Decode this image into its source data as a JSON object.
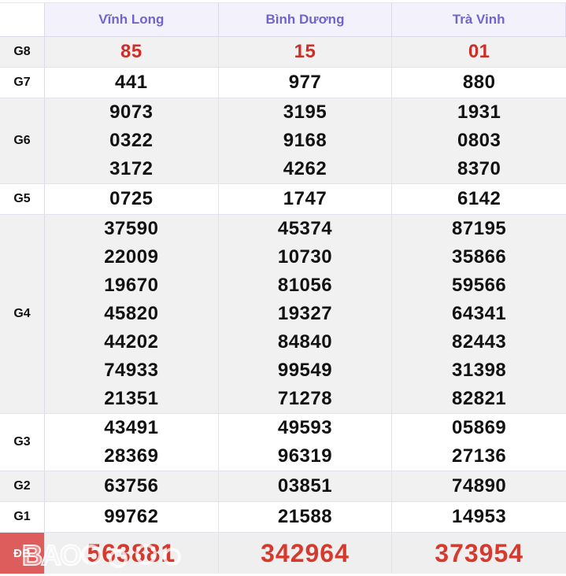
{
  "table": {
    "corner_label": "",
    "columns": [
      "Vĩnh Long",
      "Bình Dương",
      "Trà Vinh"
    ],
    "rows": [
      {
        "label": "G8",
        "style": "red",
        "cells": [
          [
            "85"
          ],
          [
            "15"
          ],
          [
            "01"
          ]
        ]
      },
      {
        "label": "G7",
        "style": "black",
        "cells": [
          [
            "441"
          ],
          [
            "977"
          ],
          [
            "880"
          ]
        ]
      },
      {
        "label": "G6",
        "style": "black",
        "cells": [
          [
            "9073",
            "0322",
            "3172"
          ],
          [
            "3195",
            "9168",
            "4262"
          ],
          [
            "1931",
            "0803",
            "8370"
          ]
        ]
      },
      {
        "label": "G5",
        "style": "black",
        "cells": [
          [
            "0725"
          ],
          [
            "1747"
          ],
          [
            "6142"
          ]
        ]
      },
      {
        "label": "G4",
        "style": "black",
        "cells": [
          [
            "37590",
            "22009",
            "19670",
            "45820",
            "44202",
            "74933",
            "21351"
          ],
          [
            "45374",
            "10730",
            "81056",
            "19327",
            "84840",
            "99549",
            "71278"
          ],
          [
            "87195",
            "35866",
            "59566",
            "64341",
            "82443",
            "31398",
            "82821"
          ]
        ]
      },
      {
        "label": "G3",
        "style": "black",
        "cells": [
          [
            "43491",
            "28369"
          ],
          [
            "49593",
            "96319"
          ],
          [
            "05869",
            "27136"
          ]
        ]
      },
      {
        "label": "G2",
        "style": "black",
        "cells": [
          [
            "63756"
          ],
          [
            "03851"
          ],
          [
            "74890"
          ]
        ]
      },
      {
        "label": "G1",
        "style": "black",
        "cells": [
          [
            "99762"
          ],
          [
            "21588"
          ],
          [
            "14953"
          ]
        ]
      },
      {
        "label": "ĐB",
        "style": "special",
        "cells": [
          [
            "563881"
          ],
          [
            "342964"
          ],
          [
            "373954"
          ]
        ]
      }
    ]
  },
  "watermark": {
    "text": "BAO"
  },
  "colors": {
    "header_text": "#7165cc",
    "header_bg": "#f3f1fb",
    "stripe_bg": "#f2f1f2",
    "red_number": "#cd2f27",
    "special_label_bg": "#dd5c5c",
    "special_number": "#d53a2e",
    "border": "#e3e2ea"
  }
}
